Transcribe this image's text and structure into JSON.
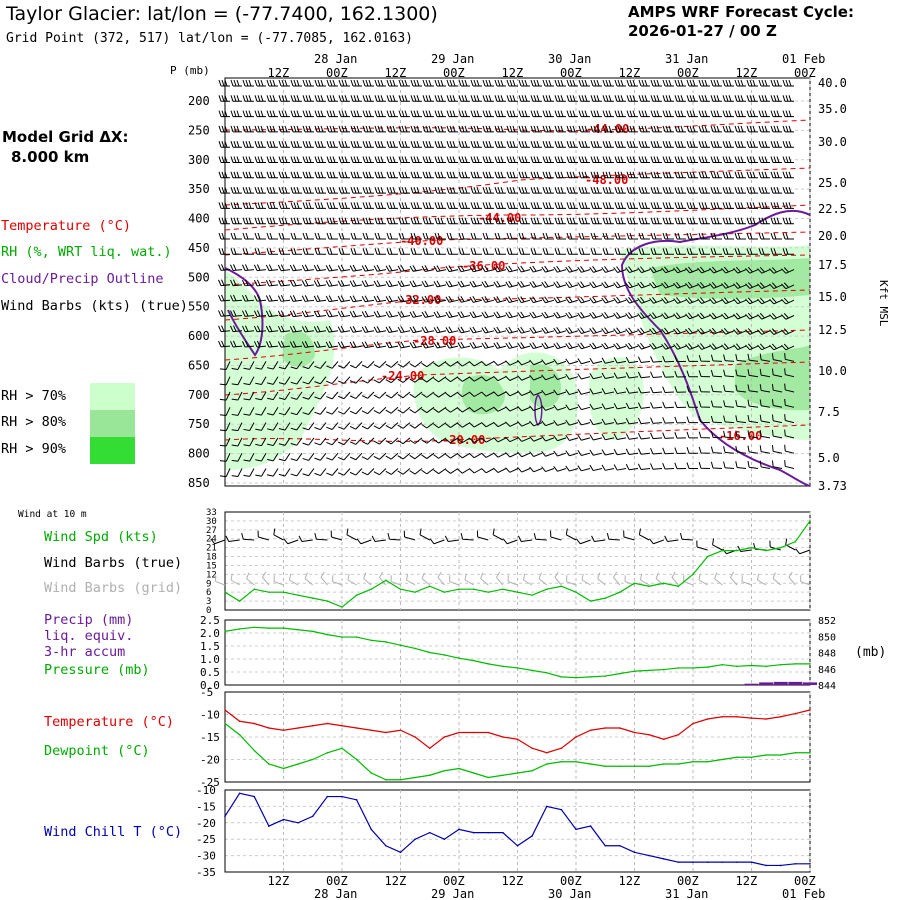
{
  "header": {
    "title": "Taylor Glacier:  lat/lon = (-77.7400, 162.1300)",
    "subtitle": "Grid Point (372, 517) lat/lon = (-77.7085, 162.0163)",
    "cycle_line1": "AMPS WRF Forecast Cycle:",
    "cycle_line2": "2026-01-27 / 00  Z",
    "grid_label": "Model Grid ΔX:",
    "grid_value": "8.000 km"
  },
  "colors": {
    "temperature": "#dd0000",
    "rh": "#00bb00",
    "cloud": "#6a1b9a",
    "wind": "#000000",
    "wind_grid": "#b0b0b0",
    "precip": "#6a1b9a",
    "pressure": "#00bb00",
    "dewpoint": "#00bb00",
    "windchill": "#0000aa",
    "rh70": "#ccffcc",
    "rh80": "#99e699",
    "rh90": "#33dd33"
  },
  "time_axis": {
    "top_hour_labels": [
      "12Z",
      "00Z",
      "12Z",
      "00Z",
      "12Z",
      "00Z",
      "12Z",
      "00Z",
      "12Z",
      "00Z"
    ],
    "top_day_labels": [
      "28 Jan",
      "29 Jan",
      "30 Jan",
      "31 Jan",
      "01 Feb"
    ],
    "bottom_hour_labels": [
      "12Z",
      "00Z",
      "12Z",
      "00Z",
      "12Z",
      "00Z",
      "12Z",
      "00Z",
      "12Z",
      "00Z"
    ],
    "bottom_day_labels": [
      "28 Jan",
      "29 Jan",
      "30 Jan",
      "31 Jan",
      "01 Feb"
    ]
  },
  "panel1": {
    "p_axis_label": "P (mb)",
    "p_ticks": [
      "200",
      "250",
      "300",
      "350",
      "400",
      "450",
      "500",
      "550",
      "600",
      "650",
      "700",
      "750",
      "800",
      "850"
    ],
    "kft_ticks": [
      "40.0",
      "35.0",
      "30.0",
      "25.0",
      "22.5",
      "20.0",
      "17.5",
      "15.0",
      "12.5",
      "10.0",
      "7.5",
      "5.0",
      "3.73"
    ],
    "kft_label": "Kft MSL",
    "legend": {
      "temperature": "Temperature (°C)",
      "rh": "RH (%, WRT liq. wat.)",
      "cloud": "Cloud/Precip Outline",
      "wind": "Wind Barbs (kts) (true)",
      "rh70": "RH > 70%",
      "rh80": "RH > 80%",
      "rh90": "RH > 90%"
    },
    "temp_contour_labels": [
      "-44.00",
      "-48.00",
      "-44.00",
      "-40.00",
      "-36.00",
      "-32.00",
      "-28.00",
      "-24.00",
      "-20.00",
      "-16.00"
    ]
  },
  "panel2": {
    "caption": "Wind at 10 m",
    "legend_speed": "Wind Spd (kts)",
    "legend_barbs_true": "Wind Barbs (true)",
    "legend_barbs_grid": "Wind Barbs (grid)",
    "y_ticks": [
      "33",
      "30",
      "27",
      "24",
      "21",
      "18",
      "15",
      "12",
      "9",
      "6",
      "3",
      "0"
    ]
  },
  "panel3": {
    "legend_precip1": "Precip (mm)",
    "legend_precip2": "liq. equiv.",
    "legend_precip3": "3-hr accum",
    "legend_pressure": "Pressure (mb)",
    "y_ticks_left": [
      "2.5",
      "2.0",
      "1.5",
      "1.0",
      "0.5",
      "0.0"
    ],
    "y_ticks_right": [
      "852",
      "850",
      "848",
      "846",
      "844"
    ],
    "right_unit": "(mb)"
  },
  "panel4": {
    "legend_temp": "Temperature (°C)",
    "legend_dew": "Dewpoint (°C)",
    "y_ticks": [
      "-5",
      "-10",
      "-15",
      "-20",
      "-25"
    ]
  },
  "panel5": {
    "legend_wc": "Wind Chill T (°C)",
    "y_ticks": [
      "-10",
      "-15",
      "-20",
      "-25",
      "-30",
      "-35"
    ]
  },
  "chart_data": [
    {
      "type": "line",
      "title": "Wind at 10 m",
      "x_unit": "forecast hour",
      "x": [
        0,
        3,
        6,
        9,
        12,
        15,
        18,
        21,
        24,
        27,
        30,
        33,
        36,
        39,
        42,
        45,
        48,
        51,
        54,
        57,
        60,
        63,
        66,
        69,
        72,
        75,
        78,
        81,
        84,
        87,
        90,
        93,
        96,
        99,
        102,
        105,
        108,
        111,
        114,
        117,
        120
      ],
      "xlim": [
        0,
        120
      ],
      "ylim": [
        0,
        33
      ],
      "series": [
        {
          "name": "Wind Spd (kts)",
          "values": [
            6,
            3,
            7,
            6,
            6,
            5,
            4,
            3,
            1,
            5,
            7,
            10,
            7,
            6,
            8,
            6,
            7,
            7,
            6,
            7,
            6,
            5,
            7,
            8,
            6,
            3,
            4,
            6,
            9,
            8,
            9,
            8,
            12,
            18,
            20,
            20,
            21,
            20,
            21,
            23,
            30
          ]
        }
      ]
    },
    {
      "type": "line",
      "x": [
        0,
        3,
        6,
        9,
        12,
        15,
        18,
        21,
        24,
        27,
        30,
        33,
        36,
        39,
        42,
        45,
        48,
        51,
        54,
        57,
        60,
        63,
        66,
        69,
        72,
        75,
        78,
        81,
        84,
        87,
        90,
        93,
        96,
        99,
        102,
        105,
        108,
        111,
        114,
        117,
        120
      ],
      "xlim": [
        0,
        120
      ],
      "ylim_left": [
        0,
        2.5
      ],
      "ylim_right": [
        844,
        852
      ],
      "series": [
        {
          "name": "Pressure (mb)",
          "axis": "right",
          "values": [
            850.6,
            850.9,
            851.1,
            851.0,
            851.0,
            850.8,
            850.6,
            850.2,
            849.9,
            849.9,
            849.5,
            849.3,
            848.9,
            848.5,
            848.0,
            847.7,
            847.3,
            847.0,
            846.6,
            846.3,
            846.1,
            845.8,
            845.5,
            845.0,
            844.9,
            845.0,
            845.1,
            845.4,
            845.7,
            845.8,
            845.9,
            846.1,
            846.1,
            846.2,
            846.5,
            846.3,
            846.4,
            846.3,
            846.5,
            846.6,
            846.6
          ]
        },
        {
          "name": "Precip (mm)",
          "axis": "left",
          "values": [
            0,
            0,
            0,
            0,
            0,
            0,
            0,
            0,
            0,
            0,
            0,
            0,
            0,
            0,
            0,
            0,
            0,
            0,
            0,
            0,
            0,
            0,
            0,
            0,
            0,
            0,
            0,
            0,
            0,
            0,
            0,
            0,
            0,
            0,
            0,
            0,
            0.05,
            0.1,
            0.12,
            0.12,
            0.1
          ]
        }
      ]
    },
    {
      "type": "line",
      "x": [
        0,
        3,
        6,
        9,
        12,
        15,
        18,
        21,
        24,
        27,
        30,
        33,
        36,
        39,
        42,
        45,
        48,
        51,
        54,
        57,
        60,
        63,
        66,
        69,
        72,
        75,
        78,
        81,
        84,
        87,
        90,
        93,
        96,
        99,
        102,
        105,
        108,
        111,
        114,
        117,
        120
      ],
      "xlim": [
        0,
        120
      ],
      "ylim": [
        -25,
        -5
      ],
      "series": [
        {
          "name": "Temperature (°C)",
          "values": [
            -9.0,
            -11.5,
            -12.0,
            -13.0,
            -13.5,
            -13.0,
            -12.5,
            -12.0,
            -12.5,
            -13.0,
            -13.5,
            -14.0,
            -13.5,
            -15.0,
            -17.5,
            -15.0,
            -14.0,
            -14.0,
            -14.0,
            -15.0,
            -15.5,
            -17.5,
            -18.5,
            -17.5,
            -15.0,
            -13.5,
            -13.0,
            -13.0,
            -14.0,
            -14.5,
            -15.5,
            -14.5,
            -12.0,
            -11.0,
            -10.5,
            -10.5,
            -10.8,
            -11.0,
            -10.5,
            -9.8,
            -9.0
          ]
        },
        {
          "name": "Dewpoint (°C)",
          "values": [
            -12.0,
            -14.5,
            -18.0,
            -21.0,
            -22.0,
            -21.0,
            -20.0,
            -18.5,
            -17.5,
            -20.0,
            -23.0,
            -24.5,
            -24.5,
            -24.0,
            -23.5,
            -22.5,
            -22.0,
            -23.0,
            -24.0,
            -23.5,
            -23.0,
            -22.5,
            -21.0,
            -20.5,
            -20.5,
            -21.0,
            -21.5,
            -21.5,
            -21.5,
            -21.5,
            -21.0,
            -21.0,
            -20.5,
            -20.5,
            -20.0,
            -19.5,
            -19.5,
            -19.0,
            -19.0,
            -18.5,
            -18.5
          ]
        }
      ]
    },
    {
      "type": "line",
      "x": [
        0,
        3,
        6,
        9,
        12,
        15,
        18,
        21,
        24,
        27,
        30,
        33,
        36,
        39,
        42,
        45,
        48,
        51,
        54,
        57,
        60,
        63,
        66,
        69,
        72,
        75,
        78,
        81,
        84,
        87,
        90,
        93,
        96,
        99,
        102,
        105,
        108,
        111,
        114,
        117,
        120
      ],
      "xlim": [
        0,
        120
      ],
      "ylim": [
        -35,
        -10
      ],
      "series": [
        {
          "name": "Wind Chill T (°C)",
          "values": [
            -18,
            -11,
            -12,
            -21,
            -19,
            -20,
            -18,
            -12,
            -12,
            -13,
            -22,
            -27,
            -29,
            -25,
            -23,
            -25,
            -22,
            -23,
            -23,
            -23,
            -27,
            -24,
            -15,
            -16,
            -22,
            -21,
            -27,
            -27,
            -29,
            -30,
            -31,
            -32,
            -32,
            -32,
            -32,
            -32,
            -32,
            -33,
            -33,
            -32.5,
            -32.5
          ]
        }
      ]
    }
  ]
}
